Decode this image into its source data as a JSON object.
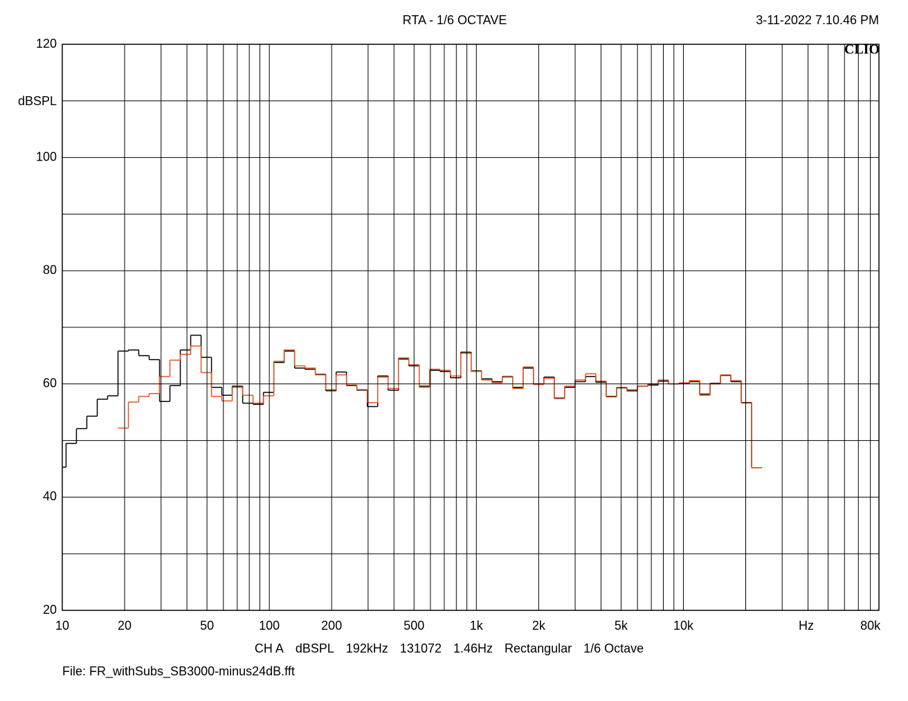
{
  "chart_data": {
    "type": "step",
    "title": "RTA - 1/6 OCTAVE",
    "date": "3-11-2022 7.10.46 PM",
    "logo": "CLIO",
    "ylabel": "dBSPL",
    "xlabel": "Hz",
    "footer": [
      "CH A",
      "dBSPL",
      "192kHz",
      "131072",
      "1.46Hz",
      "Rectangular",
      "1/6 Octave"
    ],
    "file": "File: FR_withSubs_SB3000-minus24dB.fft",
    "log_x": true,
    "grid": true,
    "band_octaves": 0.1667,
    "xlim": [
      10,
      88000
    ],
    "ylim": [
      20,
      120
    ],
    "xticks": [
      10,
      20,
      50,
      100,
      200,
      500,
      {
        "value": 1000,
        "label": "1k"
      },
      {
        "value": 2000,
        "label": "2k"
      },
      {
        "value": 5000,
        "label": "5k"
      },
      {
        "value": 10000,
        "label": "10k"
      },
      {
        "value": 80000,
        "label": "80k"
      }
    ],
    "xgrid": [
      20,
      30,
      40,
      50,
      60,
      70,
      80,
      90,
      100,
      200,
      300,
      400,
      500,
      600,
      700,
      800,
      900,
      1000,
      2000,
      3000,
      4000,
      5000,
      6000,
      7000,
      8000,
      9000,
      10000,
      20000,
      30000,
      40000,
      50000,
      60000,
      70000,
      80000
    ],
    "yticks": [
      20,
      40,
      60,
      80,
      100,
      120
    ],
    "ygrid": [
      30,
      40,
      50,
      60,
      70,
      80,
      90,
      100,
      110
    ],
    "x": [
      9.84,
      11.05,
      12.4,
      13.92,
      15.63,
      17.54,
      19.69,
      22.1,
      24.8,
      27.84,
      31.25,
      35.08,
      39.37,
      44.19,
      49.61,
      55.68,
      62.5,
      70.15,
      78.75,
      88.39,
      99.21,
      111.4,
      125,
      140.3,
      157.5,
      176.8,
      198.4,
      222.7,
      250,
      280.6,
      315,
      353.6,
      396.9,
      445.4,
      500,
      561.2,
      630,
      707.1,
      793.7,
      890.9,
      1000,
      1122,
      1260,
      1414,
      1587,
      1782,
      2000,
      2245,
      2520,
      2828,
      3175,
      3564,
      4000,
      4490,
      5040,
      5657,
      6350,
      7127,
      8000,
      8980,
      10079,
      11314,
      12699,
      14254,
      16000,
      17959,
      20159,
      22627
    ],
    "series": [
      {
        "color": "#000000",
        "values": [
          45.3,
          49.5,
          52.1,
          54.3,
          57.3,
          57.9,
          65.8,
          66.0,
          65.0,
          64.3,
          56.9,
          59.7,
          66.0,
          68.6,
          64.7,
          59.4,
          58.0,
          59.6,
          56.6,
          56.4,
          58.5,
          63.8,
          65.8,
          62.8,
          62.6,
          61.7,
          58.8,
          62.1,
          59.7,
          58.9,
          56.0,
          61.4,
          58.9,
          64.4,
          63.2,
          59.6,
          62.4,
          62.2,
          61.1,
          65.6,
          62.3,
          60.9,
          60.4,
          61.3,
          59.4,
          62.8,
          60.0,
          61.2,
          57.5,
          59.4,
          60.4,
          61.3,
          60.3,
          57.8,
          59.3,
          58.9,
          59.6,
          59.8,
          60.5,
          60.0,
          60.1,
          60.4,
          58.2,
          60.1,
          61.5,
          60.4,
          56.7,
          45.2
        ]
      },
      {
        "color": "#e8531f",
        "values": [
          null,
          null,
          null,
          null,
          null,
          null,
          52.2,
          56.8,
          57.8,
          58.3,
          61.3,
          64.2,
          65.2,
          66.7,
          62.0,
          57.8,
          57.0,
          59.4,
          58.0,
          56.6,
          57.9,
          64.0,
          66.0,
          63.2,
          62.8,
          61.6,
          59.0,
          61.6,
          59.8,
          59.0,
          56.7,
          61.2,
          59.2,
          64.6,
          63.4,
          59.4,
          62.6,
          62.4,
          61.4,
          65.4,
          62.2,
          60.7,
          60.2,
          61.2,
          59.2,
          63.0,
          59.9,
          61.0,
          57.4,
          59.6,
          60.7,
          61.8,
          60.5,
          57.7,
          59.4,
          58.7,
          59.6,
          60.0,
          60.7,
          60.0,
          60.2,
          60.6,
          58.0,
          60.0,
          61.6,
          60.6,
          56.6,
          45.2
        ]
      }
    ]
  }
}
